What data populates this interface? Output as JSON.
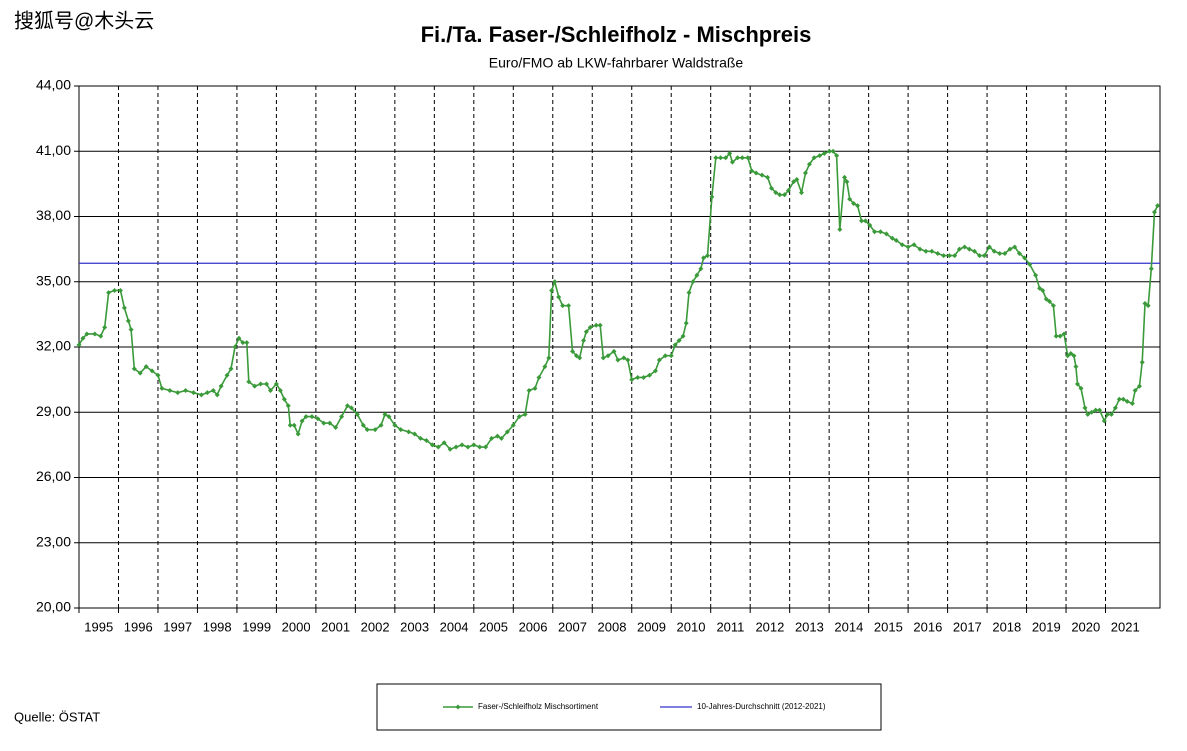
{
  "watermark": "搜狐号@木头云",
  "source": "Quelle: ÖSTAT",
  "chart_data": {
    "type": "line",
    "title": "Fi./Ta. Faser-/Schleifholz - Mischpreis",
    "subtitle": "Euro/FMO ab LKW-fahrbarer Waldstraße",
    "xlim": [
      1995,
      2022.38
    ],
    "xticks": [
      1995,
      1996,
      1997,
      1998,
      1999,
      2000,
      2001,
      2002,
      2003,
      2004,
      2005,
      2006,
      2007,
      2008,
      2009,
      2010,
      2011,
      2012,
      2013,
      2014,
      2015,
      2016,
      2017,
      2018,
      2019,
      2020,
      2021
    ],
    "ylim": [
      20,
      44
    ],
    "yticks": [
      {
        "value": 20,
        "label": "20,00"
      },
      {
        "value": 23,
        "label": "23,00"
      },
      {
        "value": 26,
        "label": "26,00"
      },
      {
        "value": 29,
        "label": "29,00"
      },
      {
        "value": 32,
        "label": "32,00"
      },
      {
        "value": 35,
        "label": "35,00"
      },
      {
        "value": 38,
        "label": "38,00"
      },
      {
        "value": 41,
        "label": "41,00"
      },
      {
        "value": 44,
        "label": "44,00"
      }
    ],
    "grid": true,
    "x": [
      1995.0,
      1995.1,
      1995.2,
      1995.4,
      1995.55,
      1995.65,
      1995.75,
      1995.9,
      1996.05,
      1996.15,
      1996.25,
      1996.32,
      1996.4,
      1996.55,
      1996.7,
      1996.85,
      1997.0,
      1997.1,
      1997.3,
      1997.5,
      1997.7,
      1997.9,
      1998.1,
      1998.25,
      1998.4,
      1998.5,
      1998.6,
      1998.75,
      1998.85,
      1998.95,
      1999.05,
      1999.15,
      1999.25,
      1999.3,
      1999.45,
      1999.6,
      1999.75,
      1999.85,
      2000.0,
      2000.1,
      2000.2,
      2000.3,
      2000.35,
      2000.45,
      2000.55,
      2000.65,
      2000.75,
      2000.9,
      2001.05,
      2001.2,
      2001.35,
      2001.5,
      2001.65,
      2001.8,
      2001.9,
      2002.05,
      2002.2,
      2002.3,
      2002.5,
      2002.65,
      2002.75,
      2002.85,
      2003.0,
      2003.15,
      2003.35,
      2003.5,
      2003.65,
      2003.8,
      2003.95,
      2004.1,
      2004.25,
      2004.4,
      2004.55,
      2004.7,
      2004.85,
      2005.0,
      2005.15,
      2005.3,
      2005.45,
      2005.6,
      2005.7,
      2005.85,
      2006.0,
      2006.15,
      2006.3,
      2006.4,
      2006.55,
      2006.65,
      2006.8,
      2006.9,
      2006.97,
      2007.05,
      2007.15,
      2007.25,
      2007.4,
      2007.5,
      2007.6,
      2007.68,
      2007.78,
      2007.85,
      2007.95,
      2008.1,
      2008.2,
      2008.28,
      2008.4,
      2008.55,
      2008.65,
      2008.8,
      2008.9,
      2009.0,
      2009.15,
      2009.3,
      2009.45,
      2009.6,
      2009.7,
      2009.85,
      2010.0,
      2010.1,
      2010.2,
      2010.3,
      2010.38,
      2010.45,
      2010.55,
      2010.65,
      2010.75,
      2010.82,
      2010.92,
      2011.03,
      2011.13,
      2011.25,
      2011.38,
      2011.48,
      2011.55,
      2011.68,
      2011.8,
      2011.94,
      2012.04,
      2012.15,
      2012.3,
      2012.44,
      2012.54,
      2012.65,
      2012.75,
      2012.87,
      2012.97,
      2013.1,
      2013.18,
      2013.3,
      2013.4,
      2013.5,
      2013.62,
      2013.76,
      2013.88,
      2014.01,
      2014.1,
      2014.19,
      2014.27,
      2014.39,
      2014.45,
      2014.52,
      2014.62,
      2014.72,
      2014.82,
      2014.92,
      2015.03,
      2015.15,
      2015.3,
      2015.45,
      2015.6,
      2015.7,
      2015.85,
      2016.0,
      2016.15,
      2016.3,
      2016.45,
      2016.6,
      2016.75,
      2016.9,
      2017.05,
      2017.18,
      2017.3,
      2017.43,
      2017.55,
      2017.68,
      2017.81,
      2017.93,
      2018.06,
      2018.18,
      2018.32,
      2018.45,
      2018.58,
      2018.7,
      2018.82,
      2018.95,
      2019.08,
      2019.23,
      2019.33,
      2019.41,
      2019.5,
      2019.58,
      2019.68,
      2019.75,
      2019.85,
      2019.95,
      2020.04,
      2020.12,
      2020.2,
      2020.25,
      2020.29,
      2020.38,
      2020.48,
      2020.55,
      2020.65,
      2020.75,
      2020.85,
      2020.97,
      2021.05,
      2021.15,
      2021.25,
      2021.35,
      2021.45,
      2021.55,
      2021.68,
      2021.75,
      2021.86,
      2021.93,
      2022.0,
      2022.08,
      2022.16,
      2022.24,
      2022.32
    ],
    "series": [
      {
        "name": "Faser-/Schleifholz Mischsortiment",
        "color": "#3a9a3a",
        "values": [
          32.1,
          32.4,
          32.6,
          32.6,
          32.5,
          32.9,
          34.5,
          34.6,
          34.6,
          33.8,
          33.2,
          32.8,
          31.0,
          30.8,
          31.1,
          30.9,
          30.7,
          30.1,
          30.0,
          29.9,
          30.0,
          29.9,
          29.8,
          29.9,
          30.0,
          29.8,
          30.2,
          30.7,
          31.0,
          32.0,
          32.4,
          32.2,
          32.2,
          30.4,
          30.2,
          30.3,
          30.3,
          30.0,
          30.3,
          30.0,
          29.6,
          29.3,
          28.4,
          28.4,
          28.0,
          28.6,
          28.8,
          28.8,
          28.7,
          28.5,
          28.5,
          28.3,
          28.8,
          29.3,
          29.2,
          28.9,
          28.4,
          28.2,
          28.2,
          28.4,
          28.9,
          28.8,
          28.4,
          28.2,
          28.1,
          28.0,
          27.8,
          27.7,
          27.5,
          27.4,
          27.6,
          27.3,
          27.4,
          27.5,
          27.4,
          27.5,
          27.4,
          27.4,
          27.8,
          27.9,
          27.8,
          28.1,
          28.4,
          28.8,
          28.9,
          30.0,
          30.1,
          30.6,
          31.1,
          31.5,
          34.6,
          35.0,
          34.3,
          33.9,
          33.9,
          31.8,
          31.6,
          31.5,
          32.3,
          32.7,
          32.9,
          33.0,
          33.0,
          31.5,
          31.6,
          31.8,
          31.4,
          31.5,
          31.4,
          30.5,
          30.6,
          30.6,
          30.7,
          30.9,
          31.4,
          31.6,
          31.6,
          32.1,
          32.3,
          32.5,
          33.1,
          34.5,
          35.0,
          35.3,
          35.6,
          36.1,
          36.2,
          38.9,
          40.7,
          40.7,
          40.7,
          40.9,
          40.5,
          40.7,
          40.7,
          40.7,
          40.1,
          40.0,
          39.9,
          39.8,
          39.3,
          39.1,
          39.0,
          39.0,
          39.2,
          39.6,
          39.7,
          39.1,
          40.0,
          40.4,
          40.7,
          40.8,
          40.9,
          41.0,
          41.0,
          40.8,
          37.4,
          39.8,
          39.6,
          38.8,
          38.6,
          38.5,
          37.8,
          37.8,
          37.6,
          37.3,
          37.3,
          37.2,
          37.0,
          36.9,
          36.7,
          36.6,
          36.7,
          36.5,
          36.4,
          36.4,
          36.3,
          36.2,
          36.2,
          36.2,
          36.5,
          36.6,
          36.5,
          36.4,
          36.2,
          36.2,
          36.6,
          36.4,
          36.3,
          36.3,
          36.5,
          36.6,
          36.3,
          36.1,
          35.8,
          35.3,
          34.7,
          34.6,
          34.2,
          34.1,
          33.9,
          32.5,
          32.5,
          32.6,
          31.6,
          31.7,
          31.6,
          31.1,
          30.3,
          30.1,
          29.2,
          28.9,
          29.0,
          29.1,
          29.1,
          28.6,
          28.9,
          28.9,
          29.2,
          29.6,
          29.6,
          29.5,
          29.4,
          30.0,
          30.2,
          31.3,
          34.0,
          33.9,
          35.6,
          38.2,
          38.5
        ]
      }
    ],
    "reference_line": {
      "name": "10-Jahres-Durchschnitt (2012-2021)",
      "color": "#3333cc",
      "value": 35.85
    }
  }
}
